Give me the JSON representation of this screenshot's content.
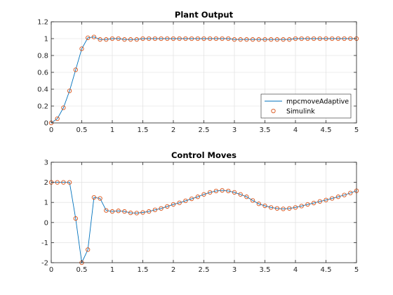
{
  "colors": {
    "line": "#0072BD",
    "marker": "#D95319",
    "axis": "#262626",
    "grid": "#dcdcdc"
  },
  "chart_data": [
    {
      "type": "line",
      "title": "Plant Output",
      "xlabel": "",
      "ylabel": "",
      "xlim": [
        0,
        5
      ],
      "ylim": [
        0,
        1.2
      ],
      "xticks": [
        0,
        0.5,
        1,
        1.5,
        2,
        2.5,
        3,
        3.5,
        4,
        4.5,
        5
      ],
      "yticks": [
        0,
        0.2,
        0.4,
        0.6,
        0.8,
        1,
        1.2
      ],
      "xtick_labels": [
        "0",
        "0.5",
        "1",
        "1.5",
        "2",
        "2.5",
        "3",
        "3.5",
        "4",
        "4.5",
        "5"
      ],
      "ytick_labels": [
        "0",
        "0.2",
        "0.4",
        "0.6",
        "0.8",
        "1",
        "1.2"
      ],
      "grid": true,
      "legend": {
        "placement": "bottom-right",
        "entries": [
          "mpcmoveAdaptive",
          "Simulink"
        ]
      },
      "series": [
        {
          "name": "mpcmoveAdaptive",
          "style": "line",
          "x": [
            0,
            0.1,
            0.2,
            0.3,
            0.4,
            0.5,
            0.6,
            0.7,
            0.8,
            0.9,
            1.0,
            1.1,
            1.2,
            1.3,
            1.4,
            1.5,
            1.6,
            1.7,
            1.8,
            1.9,
            2.0,
            2.1,
            2.2,
            2.3,
            2.4,
            2.5,
            2.6,
            2.7,
            2.8,
            2.9,
            3.0,
            3.1,
            3.2,
            3.3,
            3.4,
            3.5,
            3.6,
            3.7,
            3.8,
            3.9,
            4.0,
            4.1,
            4.2,
            4.3,
            4.4,
            4.5,
            4.6,
            4.7,
            4.8,
            4.9,
            5.0
          ],
          "y": [
            0,
            0.05,
            0.18,
            0.38,
            0.63,
            0.88,
            1.01,
            1.02,
            0.99,
            0.99,
            1.0,
            1.0,
            0.99,
            0.99,
            0.99,
            1.0,
            1.0,
            1.0,
            1.0,
            1.0,
            1.0,
            1.0,
            1.0,
            1.0,
            1.0,
            1.0,
            1.0,
            1.0,
            1.0,
            1.0,
            0.99,
            0.99,
            0.99,
            0.99,
            0.99,
            0.99,
            0.99,
            0.99,
            0.99,
            0.99,
            1.0,
            1.0,
            1.0,
            1.0,
            1.0,
            1.0,
            1.0,
            1.0,
            1.0,
            1.0,
            1.0
          ]
        },
        {
          "name": "Simulink",
          "style": "markers",
          "x": [
            0,
            0.1,
            0.2,
            0.3,
            0.4,
            0.5,
            0.6,
            0.7,
            0.8,
            0.9,
            1.0,
            1.1,
            1.2,
            1.3,
            1.4,
            1.5,
            1.6,
            1.7,
            1.8,
            1.9,
            2.0,
            2.1,
            2.2,
            2.3,
            2.4,
            2.5,
            2.6,
            2.7,
            2.8,
            2.9,
            3.0,
            3.1,
            3.2,
            3.3,
            3.4,
            3.5,
            3.6,
            3.7,
            3.8,
            3.9,
            4.0,
            4.1,
            4.2,
            4.3,
            4.4,
            4.5,
            4.6,
            4.7,
            4.8,
            4.9,
            5.0
          ],
          "y": [
            0,
            0.05,
            0.18,
            0.38,
            0.63,
            0.88,
            1.01,
            1.02,
            0.99,
            0.99,
            1.0,
            1.0,
            0.99,
            0.99,
            0.99,
            1.0,
            1.0,
            1.0,
            1.0,
            1.0,
            1.0,
            1.0,
            1.0,
            1.0,
            1.0,
            1.0,
            1.0,
            1.0,
            1.0,
            1.0,
            0.99,
            0.99,
            0.99,
            0.99,
            0.99,
            0.99,
            0.99,
            0.99,
            0.99,
            0.99,
            1.0,
            1.0,
            1.0,
            1.0,
            1.0,
            1.0,
            1.0,
            1.0,
            1.0,
            1.0,
            1.0
          ]
        }
      ]
    },
    {
      "type": "line",
      "title": "Control Moves",
      "xlabel": "",
      "ylabel": "",
      "xlim": [
        0,
        5
      ],
      "ylim": [
        -2,
        3
      ],
      "xticks": [
        0,
        0.5,
        1,
        1.5,
        2,
        2.5,
        3,
        3.5,
        4,
        4.5,
        5
      ],
      "yticks": [
        -2,
        -1,
        0,
        1,
        2,
        3
      ],
      "xtick_labels": [
        "0",
        "0.5",
        "1",
        "1.5",
        "2",
        "2.5",
        "3",
        "3.5",
        "4",
        "4.5",
        "5"
      ],
      "ytick_labels": [
        "-2",
        "-1",
        "0",
        "1",
        "2",
        "3"
      ],
      "grid": true,
      "series": [
        {
          "name": "mpcmoveAdaptive",
          "style": "line",
          "x": [
            0,
            0.1,
            0.2,
            0.3,
            0.4,
            0.5,
            0.6,
            0.7,
            0.8,
            0.9,
            1.0,
            1.1,
            1.2,
            1.3,
            1.4,
            1.5,
            1.6,
            1.7,
            1.8,
            1.9,
            2.0,
            2.1,
            2.2,
            2.3,
            2.4,
            2.5,
            2.6,
            2.7,
            2.8,
            2.9,
            3.0,
            3.1,
            3.2,
            3.3,
            3.4,
            3.5,
            3.6,
            3.7,
            3.8,
            3.9,
            4.0,
            4.1,
            4.2,
            4.3,
            4.4,
            4.5,
            4.6,
            4.7,
            4.8,
            4.9,
            5.0
          ],
          "y": [
            2.0,
            2.0,
            2.0,
            2.0,
            0.2,
            -2.0,
            -1.35,
            1.25,
            1.2,
            0.6,
            0.55,
            0.58,
            0.55,
            0.48,
            0.47,
            0.5,
            0.55,
            0.63,
            0.7,
            0.8,
            0.9,
            0.98,
            1.08,
            1.18,
            1.28,
            1.4,
            1.5,
            1.57,
            1.6,
            1.57,
            1.5,
            1.4,
            1.28,
            1.1,
            0.93,
            0.83,
            0.75,
            0.7,
            0.68,
            0.7,
            0.75,
            0.82,
            0.9,
            0.97,
            1.05,
            1.12,
            1.2,
            1.28,
            1.37,
            1.47,
            1.58
          ]
        },
        {
          "name": "Simulink",
          "style": "markers",
          "x": [
            0,
            0.1,
            0.2,
            0.3,
            0.4,
            0.5,
            0.6,
            0.7,
            0.8,
            0.9,
            1.0,
            1.1,
            1.2,
            1.3,
            1.4,
            1.5,
            1.6,
            1.7,
            1.8,
            1.9,
            2.0,
            2.1,
            2.2,
            2.3,
            2.4,
            2.5,
            2.6,
            2.7,
            2.8,
            2.9,
            3.0,
            3.1,
            3.2,
            3.3,
            3.4,
            3.5,
            3.6,
            3.7,
            3.8,
            3.9,
            4.0,
            4.1,
            4.2,
            4.3,
            4.4,
            4.5,
            4.6,
            4.7,
            4.8,
            4.9,
            5.0
          ],
          "y": [
            2.0,
            2.0,
            2.0,
            2.0,
            0.2,
            -2.0,
            -1.35,
            1.25,
            1.2,
            0.6,
            0.55,
            0.58,
            0.55,
            0.48,
            0.47,
            0.5,
            0.55,
            0.63,
            0.7,
            0.8,
            0.9,
            0.98,
            1.08,
            1.18,
            1.28,
            1.4,
            1.5,
            1.57,
            1.6,
            1.57,
            1.5,
            1.4,
            1.28,
            1.1,
            0.93,
            0.83,
            0.75,
            0.7,
            0.68,
            0.7,
            0.75,
            0.82,
            0.9,
            0.97,
            1.05,
            1.12,
            1.2,
            1.28,
            1.37,
            1.47,
            1.58
          ]
        }
      ]
    }
  ]
}
